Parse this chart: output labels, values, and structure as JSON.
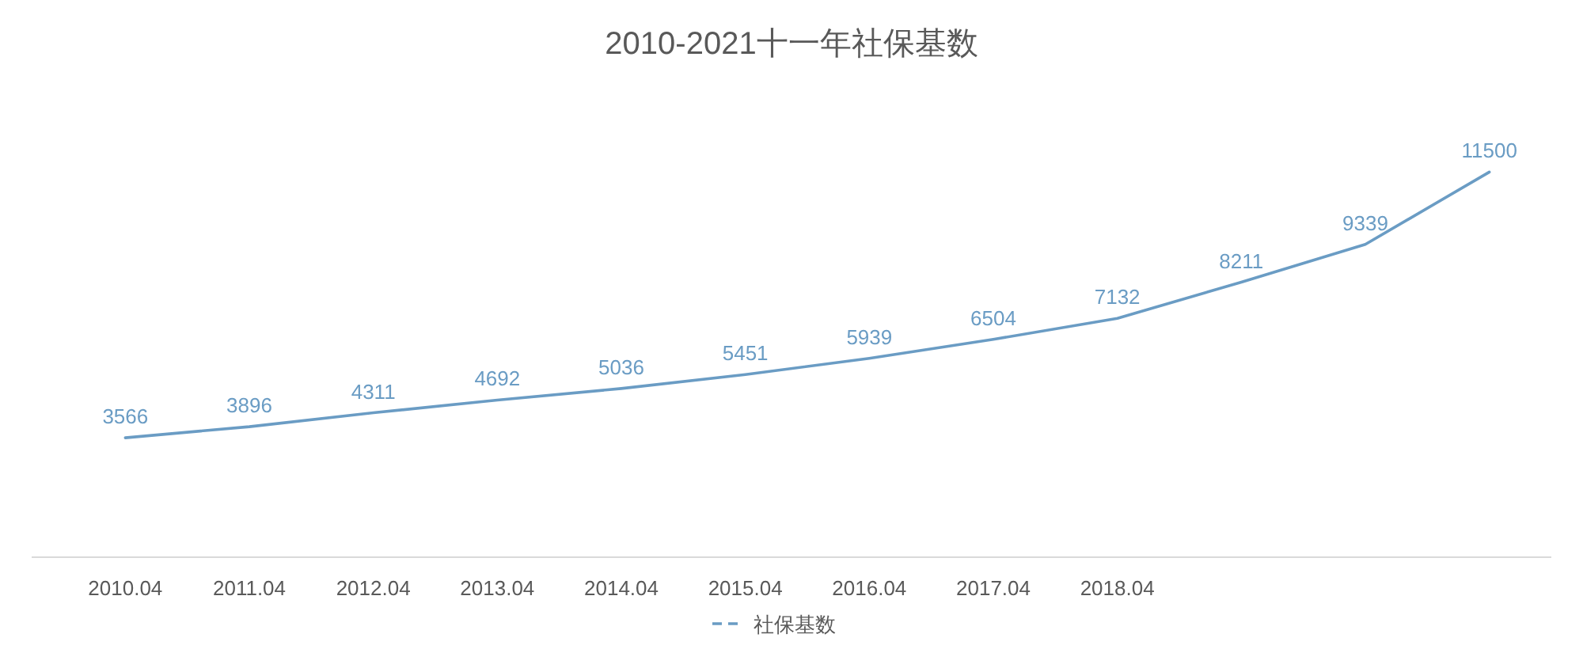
{
  "chart_data": {
    "type": "line",
    "title": "2010-2021十一年社保基数",
    "categories": [
      "2010.04",
      "2011.04",
      "2012.04",
      "2013.04",
      "2014.04",
      "2015.04",
      "2016.04",
      "2017.04",
      "2018.04",
      null,
      null,
      null
    ],
    "series": [
      {
        "name": "社保基数",
        "color": "#6a9cc4",
        "values": [
          3566,
          3896,
          4311,
          4692,
          5036,
          5451,
          5939,
          6504,
          7132,
          8211,
          9339,
          11500
        ]
      }
    ],
    "data_labels": true,
    "legend": "bottom",
    "marker": "none",
    "line_style": "solid"
  }
}
